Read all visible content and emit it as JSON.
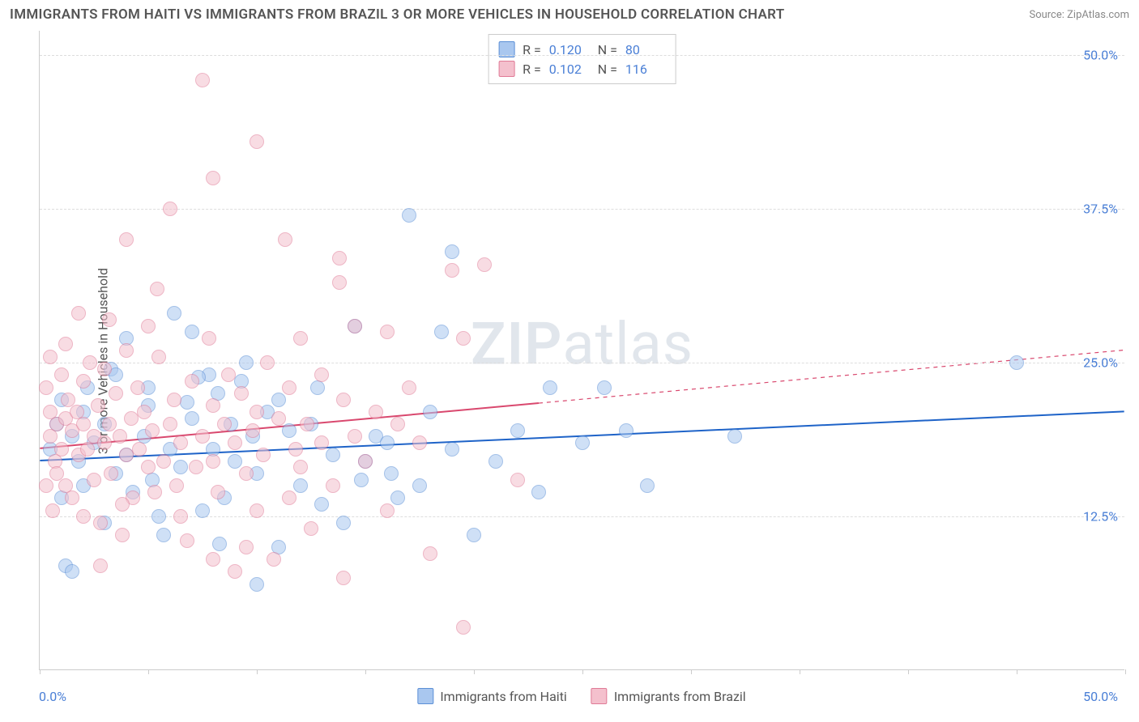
{
  "title": "IMMIGRANTS FROM HAITI VS IMMIGRANTS FROM BRAZIL 3 OR MORE VEHICLES IN HOUSEHOLD CORRELATION CHART",
  "source": "Source: ZipAtlas.com",
  "ylabel": "3 or more Vehicles in Household",
  "watermark_zip": "ZIP",
  "watermark_atlas": "atlas",
  "chart": {
    "type": "scatter",
    "xlim": [
      0,
      50
    ],
    "ylim": [
      0,
      52
    ],
    "xticks_minor_step": 5,
    "yticks": [
      12.5,
      25.0,
      37.5,
      50.0
    ],
    "ytick_labels": [
      "12.5%",
      "25.0%",
      "37.5%",
      "50.0%"
    ],
    "xtick_min_label": "0.0%",
    "xtick_max_label": "50.0%",
    "background_color": "#ffffff",
    "grid_color": "#dddddd",
    "tick_label_color": "#4a7fd6",
    "point_radius": 9,
    "point_opacity": 0.55,
    "series": [
      {
        "name": "Immigrants from Haiti",
        "fill": "#a9c7ef",
        "stroke": "#5b8fd6",
        "r_label": "R =",
        "r_value": "0.120",
        "n_label": "N =",
        "n_value": "80",
        "trend": {
          "x1": 0,
          "y1": 17.0,
          "x2": 50,
          "y2": 21.0,
          "solid_until": 50,
          "stroke": "#1e63c8",
          "width": 2
        },
        "points": [
          [
            0.5,
            18
          ],
          [
            0.8,
            20
          ],
          [
            1,
            22
          ],
          [
            1,
            14
          ],
          [
            1.2,
            8.5
          ],
          [
            1.5,
            19
          ],
          [
            1.8,
            17
          ],
          [
            2,
            21
          ],
          [
            2,
            15
          ],
          [
            2.2,
            23
          ],
          [
            2.5,
            18.5
          ],
          [
            3,
            20
          ],
          [
            3,
            12
          ],
          [
            3.3,
            24.5
          ],
          [
            3.5,
            16
          ],
          [
            4,
            27
          ],
          [
            4,
            17.5
          ],
          [
            4.3,
            14.5
          ],
          [
            4.8,
            19
          ],
          [
            5,
            21.5
          ],
          [
            5.2,
            15.5
          ],
          [
            5.5,
            12.5
          ],
          [
            6,
            18
          ],
          [
            6.2,
            29
          ],
          [
            6.5,
            16.5
          ],
          [
            7,
            20.5
          ],
          [
            7,
            27.5
          ],
          [
            7.5,
            13
          ],
          [
            8,
            18
          ],
          [
            8.2,
            22.5
          ],
          [
            8.5,
            14
          ],
          [
            9,
            17
          ],
          [
            9.3,
            23.5
          ],
          [
            10,
            16
          ],
          [
            10,
            7
          ],
          [
            10.5,
            21
          ],
          [
            11,
            10
          ],
          [
            11.5,
            19.5
          ],
          [
            12,
            15
          ],
          [
            12.5,
            20
          ],
          [
            13,
            13.5
          ],
          [
            13.5,
            17.5
          ],
          [
            14,
            12
          ],
          [
            14.5,
            28
          ],
          [
            15,
            17
          ],
          [
            15.5,
            19
          ],
          [
            16,
            18.5
          ],
          [
            16.5,
            14
          ],
          [
            17,
            37
          ],
          [
            17.5,
            15
          ],
          [
            18,
            21
          ],
          [
            18.5,
            27.5
          ],
          [
            19,
            18
          ],
          [
            20,
            11
          ],
          [
            21,
            17
          ],
          [
            22,
            19.5
          ],
          [
            23,
            14.5
          ],
          [
            23.5,
            23
          ],
          [
            25,
            18.5
          ],
          [
            26,
            23
          ],
          [
            27,
            19.5
          ],
          [
            28,
            15
          ],
          [
            32,
            19
          ],
          [
            45,
            25
          ],
          [
            19,
            34
          ],
          [
            3.5,
            24
          ],
          [
            5,
            23
          ],
          [
            6.8,
            21.8
          ],
          [
            8.8,
            20
          ],
          [
            9.5,
            25
          ],
          [
            11,
            22
          ],
          [
            12.8,
            23
          ],
          [
            14.8,
            15.5
          ],
          [
            7.8,
            24
          ],
          [
            9.8,
            19
          ],
          [
            16.2,
            16
          ],
          [
            1.5,
            8
          ],
          [
            5.7,
            11
          ],
          [
            8.3,
            10.3
          ],
          [
            7.3,
            23.8
          ]
        ]
      },
      {
        "name": "Immigrants from Brazil",
        "fill": "#f4c0cd",
        "stroke": "#e07a96",
        "r_label": "R =",
        "r_value": "0.102",
        "n_label": "N =",
        "n_value": "116",
        "trend": {
          "x1": 0,
          "y1": 18.0,
          "x2": 50,
          "y2": 26.0,
          "solid_until": 23,
          "stroke": "#d9486e",
          "width": 2
        },
        "points": [
          [
            0.3,
            23
          ],
          [
            0.5,
            21
          ],
          [
            0.5,
            19
          ],
          [
            0.7,
            17
          ],
          [
            0.8,
            20
          ],
          [
            0.8,
            16
          ],
          [
            1,
            24
          ],
          [
            1,
            18
          ],
          [
            1.2,
            20.5
          ],
          [
            1.2,
            15
          ],
          [
            1.3,
            22
          ],
          [
            1.5,
            19.5
          ],
          [
            1.5,
            14
          ],
          [
            1.7,
            21
          ],
          [
            1.8,
            17.5
          ],
          [
            2,
            20
          ],
          [
            2,
            23.5
          ],
          [
            2.2,
            18
          ],
          [
            2.3,
            25
          ],
          [
            2.5,
            19
          ],
          [
            2.5,
            15.5
          ],
          [
            2.7,
            21.5
          ],
          [
            2.8,
            12
          ],
          [
            3,
            24.5
          ],
          [
            3,
            18.5
          ],
          [
            3.2,
            20
          ],
          [
            3.3,
            16
          ],
          [
            3.5,
            22.5
          ],
          [
            3.7,
            19
          ],
          [
            3.8,
            11
          ],
          [
            4,
            17.5
          ],
          [
            4,
            26
          ],
          [
            4.2,
            20.5
          ],
          [
            4.3,
            14
          ],
          [
            4.5,
            23
          ],
          [
            4.6,
            18
          ],
          [
            4.8,
            21
          ],
          [
            5,
            16.5
          ],
          [
            5,
            28
          ],
          [
            5.2,
            19.5
          ],
          [
            5.3,
            14.5
          ],
          [
            5.5,
            25.5
          ],
          [
            5.7,
            17
          ],
          [
            6,
            20
          ],
          [
            6,
            37.5
          ],
          [
            6.2,
            22
          ],
          [
            6.3,
            15
          ],
          [
            6.5,
            18.5
          ],
          [
            6.8,
            10.5
          ],
          [
            7,
            23.5
          ],
          [
            7.2,
            16.5
          ],
          [
            7.5,
            48
          ],
          [
            7.5,
            19
          ],
          [
            7.8,
            27
          ],
          [
            8,
            40
          ],
          [
            8,
            17
          ],
          [
            8,
            21.5
          ],
          [
            8.2,
            14.5
          ],
          [
            8.5,
            20
          ],
          [
            8.7,
            24
          ],
          [
            9,
            18.5
          ],
          [
            9,
            8
          ],
          [
            9.3,
            22.5
          ],
          [
            9.5,
            16
          ],
          [
            9.8,
            19.5
          ],
          [
            10,
            43
          ],
          [
            10,
            21
          ],
          [
            10,
            13
          ],
          [
            10.3,
            17.5
          ],
          [
            10.5,
            25
          ],
          [
            10.8,
            9
          ],
          [
            11,
            20.5
          ],
          [
            11.3,
            35
          ],
          [
            11.5,
            14
          ],
          [
            11.5,
            23
          ],
          [
            11.8,
            18
          ],
          [
            12,
            27
          ],
          [
            12,
            16.5
          ],
          [
            12.3,
            20
          ],
          [
            12.5,
            11.5
          ],
          [
            13,
            18.5
          ],
          [
            13,
            24
          ],
          [
            13.5,
            15
          ],
          [
            13.8,
            31.5
          ],
          [
            13.8,
            33.5
          ],
          [
            14,
            22
          ],
          [
            14,
            7.5
          ],
          [
            14.5,
            19
          ],
          [
            14.5,
            28
          ],
          [
            15,
            17
          ],
          [
            15.5,
            21
          ],
          [
            16,
            27.5
          ],
          [
            16,
            13
          ],
          [
            16.5,
            20
          ],
          [
            17,
            23
          ],
          [
            17.5,
            18.5
          ],
          [
            18,
            9.5
          ],
          [
            19.5,
            3.5
          ],
          [
            19,
            32.5
          ],
          [
            19.5,
            27
          ],
          [
            20.5,
            33
          ],
          [
            22,
            15.5
          ],
          [
            1.8,
            29
          ],
          [
            3.2,
            28.5
          ],
          [
            5.4,
            31
          ],
          [
            2,
            12.5
          ],
          [
            3.8,
            13.5
          ],
          [
            6.5,
            12.5
          ],
          [
            8,
            9
          ],
          [
            9.5,
            10
          ],
          [
            0.5,
            25.5
          ],
          [
            1.2,
            26.5
          ],
          [
            4,
            35
          ],
          [
            2.8,
            8.5
          ],
          [
            0.3,
            15
          ],
          [
            0.6,
            13
          ]
        ]
      }
    ]
  }
}
